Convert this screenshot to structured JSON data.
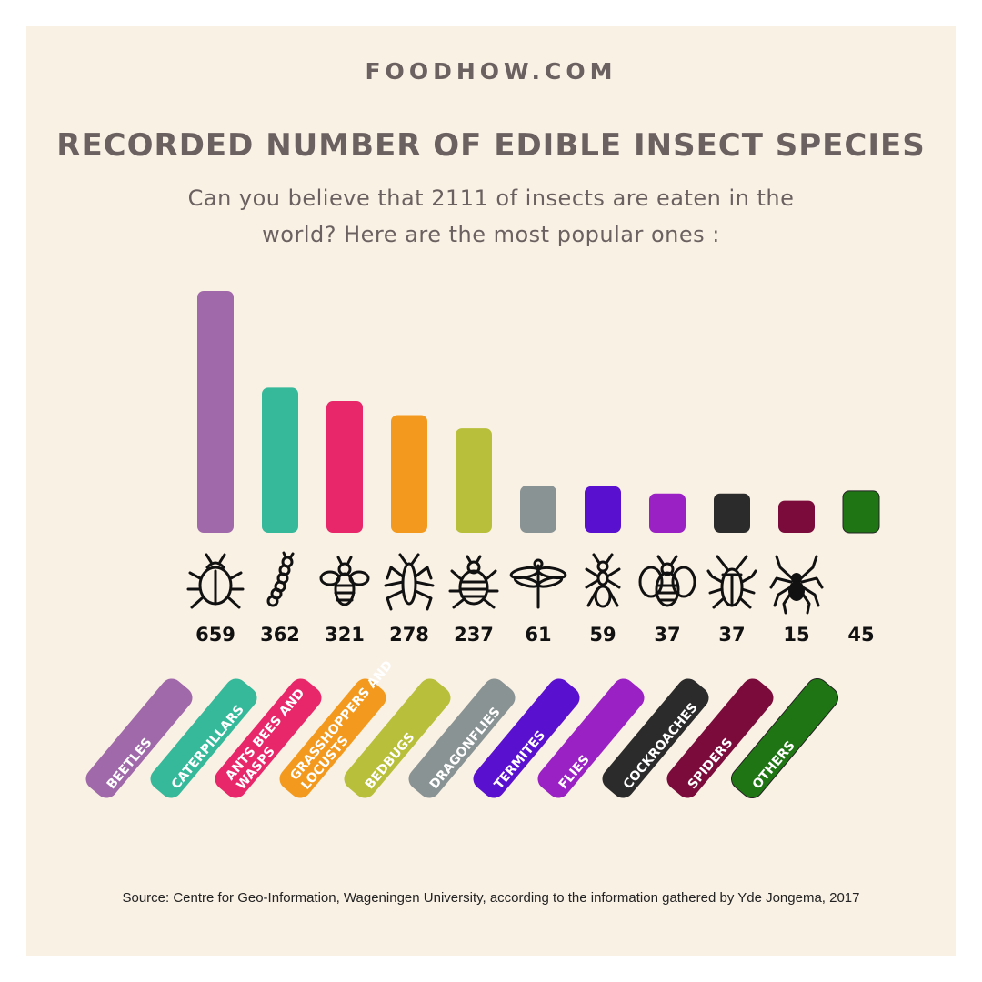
{
  "brand": "FOODHOW.COM",
  "colors": {
    "background": "#faf1e5",
    "text": "#6b6160"
  },
  "chart_data": {
    "type": "bar",
    "title": "RECORDED NUMBER OF EDIBLE INSECT SPECIES",
    "subtitle_line1": "Can you believe that 2111 of insects are eaten in the",
    "subtitle_line2": "world? Here are the most popular ones :",
    "categories": [
      "BEETLES",
      "CATERPILLARS",
      "ANTS BEES AND WASPS",
      "GRASSHOPPERS AND LOCUSTS",
      "BEDBUGS",
      "DRAGONFLIES",
      "TERMITES",
      "FLIES",
      "COCKROACHES",
      "SPIDERS",
      "OTHERS"
    ],
    "label_lines": [
      [
        "BEETLES"
      ],
      [
        "CATERPILLARS"
      ],
      [
        "ANTS BEES AND",
        "WASPS"
      ],
      [
        "GRASSHOPPERS AND",
        "LOCUSTS"
      ],
      [
        "BEDBUGS"
      ],
      [
        "DRAGONFLIES"
      ],
      [
        "TERMITES"
      ],
      [
        "FLIES"
      ],
      [
        "COCKROACHES"
      ],
      [
        "SPIDERS"
      ],
      [
        "OTHERS"
      ]
    ],
    "values": [
      659,
      362,
      321,
      278,
      237,
      61,
      59,
      37,
      37,
      15,
      45
    ],
    "colors": [
      "#a069a9",
      "#35b99a",
      "#e8276a",
      "#f39a1e",
      "#b8bf3a",
      "#8a9394",
      "#5a10cf",
      "#9a22c4",
      "#2b2b2b",
      "#7a0b3b",
      "#1f7514"
    ],
    "icons": [
      "beetle-icon",
      "caterpillar-icon",
      "bee-icon",
      "grasshopper-icon",
      "bedbug-icon",
      "dragonfly-icon",
      "ant-icon",
      "fly-icon",
      "cockroach-icon",
      "spider-icon",
      "none"
    ]
  },
  "source": "Source: Centre for Geo-Information, Wageningen University, according to the information gathered by Yde Jongema, 2017"
}
